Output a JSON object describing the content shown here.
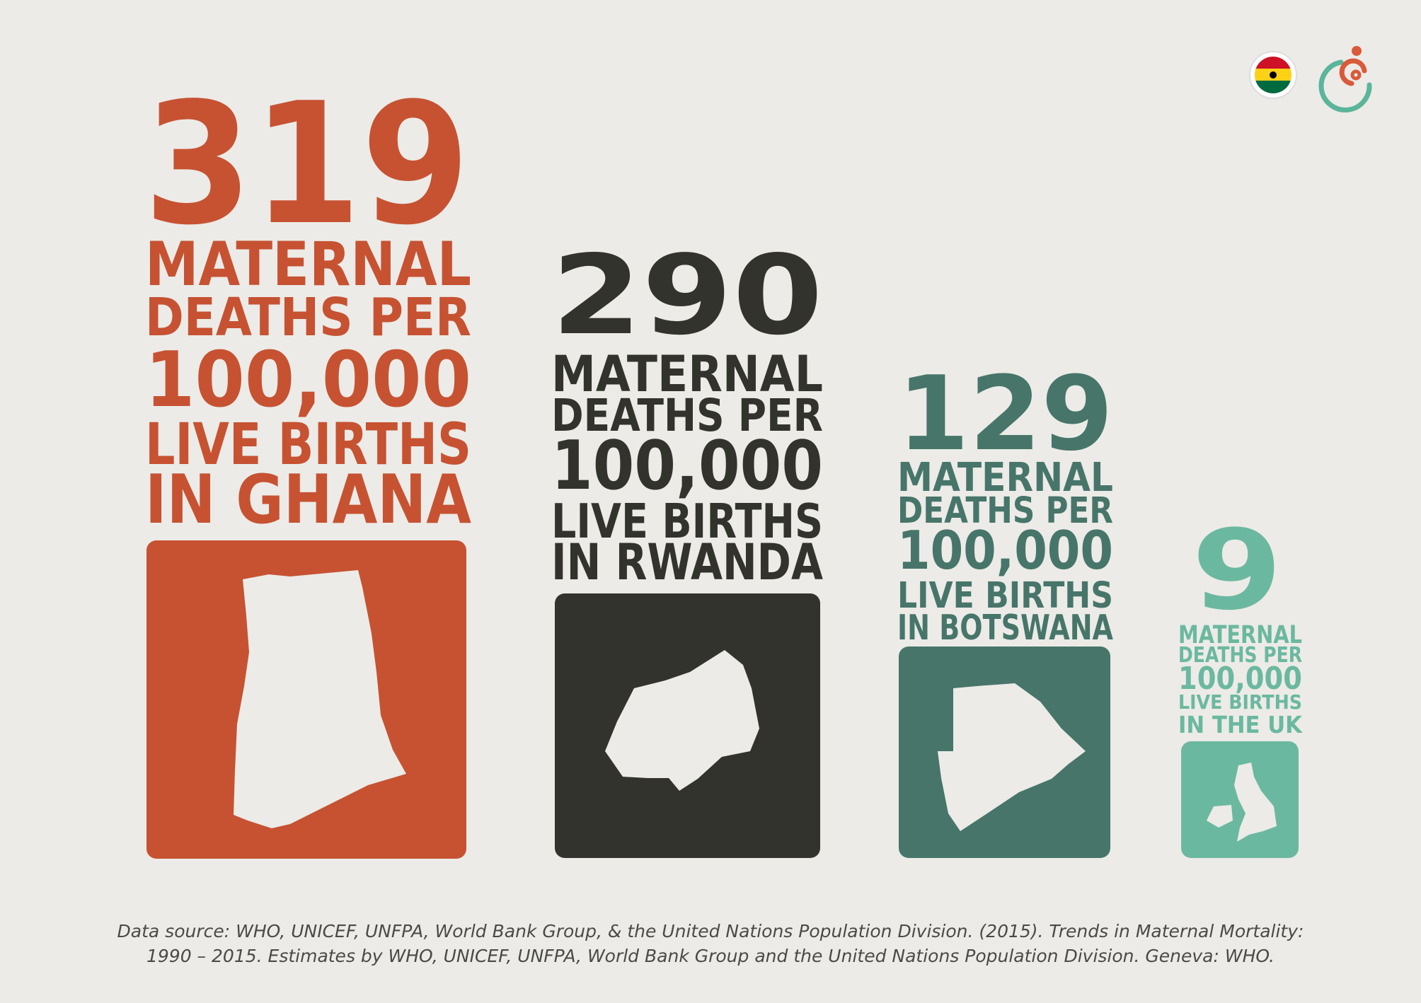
{
  "panels": [
    {
      "number": 319,
      "lines": [
        "MATERNAL",
        "DEATHS PER",
        "100,000",
        "LIVE BIRTHS",
        "IN GHANA"
      ],
      "color": "#c65232"
    },
    {
      "number": 290,
      "lines": [
        "MATERNAL",
        "DEATHS PER",
        "100,000",
        "LIVE BIRTHS",
        "IN RWANDA"
      ],
      "color": "#33332d"
    },
    {
      "number": 129,
      "lines": [
        "MATERNAL",
        "DEATHS PER",
        "100,000",
        "LIVE BIRTHS",
        "IN BOTSWANA"
      ],
      "color": "#47756a"
    },
    {
      "number": 9,
      "lines": [
        "MATERNAL",
        "DEATHS PER",
        "100,000",
        "LIVE BIRTHS",
        "IN THE UK"
      ],
      "color": "#6bb8a0"
    }
  ],
  "source": [
    "Data source: WHO, UNICEF, UNFPA, World Bank Group, & the United Nations Population Division. (2015). Trends in Maternal Mortality:",
    "1990 – 2015. Estimates by WHO, UNICEF, UNFPA, World Bank Group and the United Nations Population Division. Geneva: WHO."
  ]
}
